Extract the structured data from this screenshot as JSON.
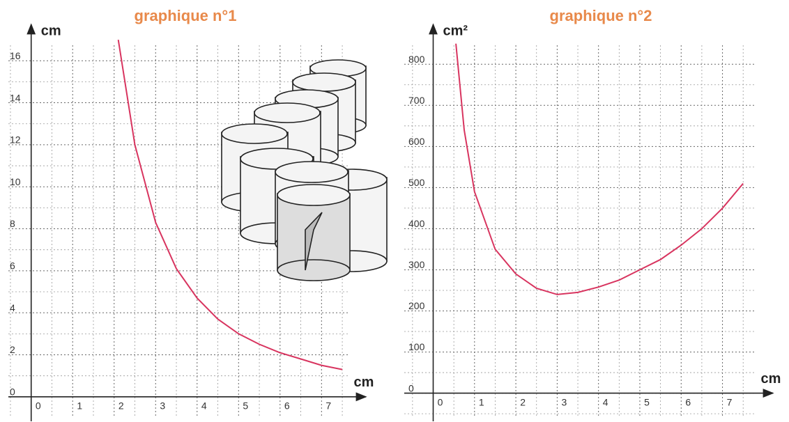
{
  "chart_data": [
    {
      "type": "line",
      "title": "graphique n°1",
      "xlabel": "cm",
      "ylabel": "cm",
      "x": [
        2.1,
        2.5,
        3,
        3.5,
        4,
        4.5,
        5,
        5.5,
        6,
        6.5,
        7,
        7.5
      ],
      "series": [
        {
          "color": "#d8345f",
          "values": [
            17,
            12,
            8.3,
            6.1,
            4.7,
            3.7,
            3,
            2.5,
            2.1,
            1.8,
            1.5,
            1.3
          ]
        }
      ],
      "xlim": [
        -0.55,
        7.65
      ],
      "ylim": [
        -1,
        17.4
      ],
      "xticks": [
        0,
        1,
        2,
        3,
        4,
        5,
        6,
        7
      ],
      "yticks": [
        0,
        2,
        4,
        6,
        8,
        10,
        12,
        14,
        16
      ],
      "grid": true
    },
    {
      "type": "line",
      "title": "graphique n°2",
      "xlabel": "cm",
      "ylabel": "cm²",
      "x": [
        0.55,
        0.75,
        1,
        1.5,
        2,
        2.5,
        3,
        3.5,
        4,
        4.5,
        5,
        5.5,
        6,
        6.5,
        7,
        7.5
      ],
      "series": [
        {
          "color": "#d8345f",
          "values": [
            850,
            640,
            490,
            350,
            290,
            255,
            240,
            245,
            258,
            275,
            300,
            325,
            360,
            400,
            450,
            510
          ]
        }
      ],
      "xlim": [
        -0.7,
        7.8
      ],
      "ylim": [
        -60,
        880
      ],
      "xticks": [
        0,
        1,
        2,
        3,
        4,
        5,
        6,
        7
      ],
      "yticks": [
        0,
        100,
        200,
        300,
        400,
        500,
        600,
        700,
        800
      ],
      "grid": true
    }
  ]
}
